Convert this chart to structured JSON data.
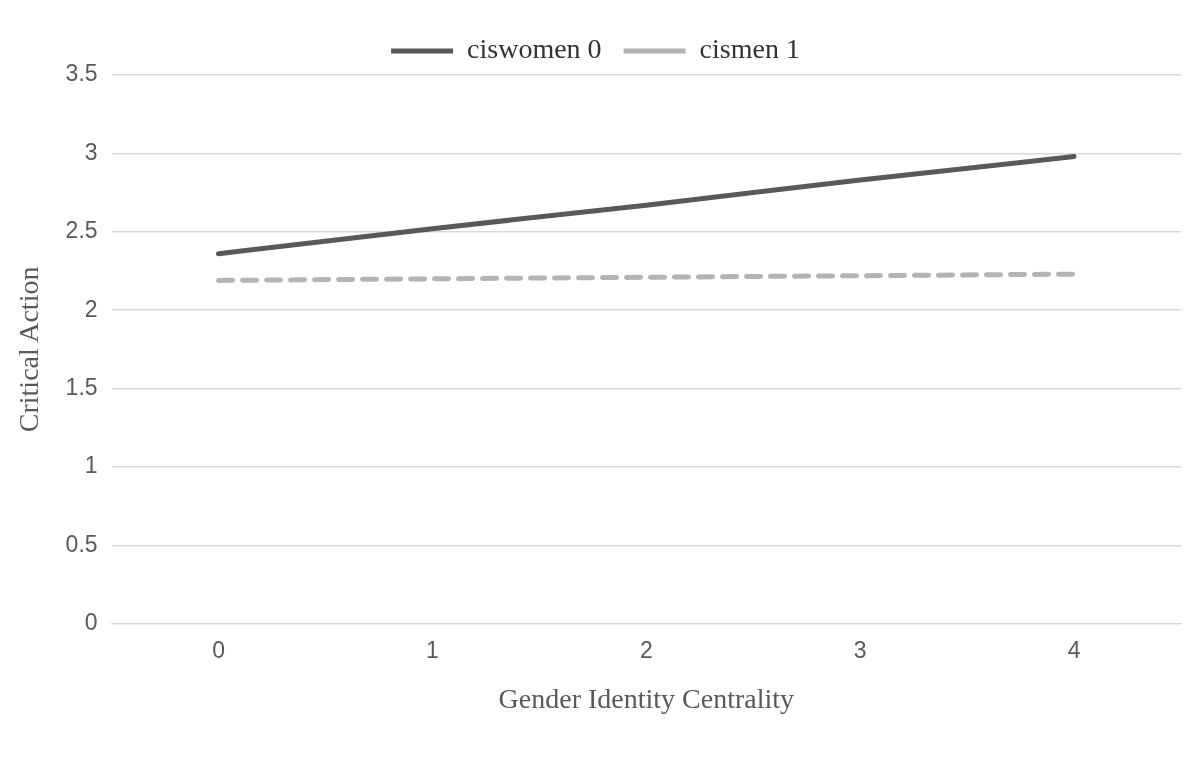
{
  "chart_data": {
    "type": "line",
    "xlabel": "Gender Identity Centrality",
    "ylabel": "Critical Action",
    "categories": [
      "0",
      "1",
      "2",
      "3",
      "4"
    ],
    "series": [
      {
        "name": "ciswomen 0",
        "color": "#595959",
        "values": [
          2.36,
          2.52,
          2.67,
          2.83,
          2.98
        ],
        "line_style": "solid"
      },
      {
        "name": "cismen 1",
        "color": "#b4b4b4",
        "values": [
          2.19,
          2.2,
          2.21,
          2.22,
          2.23
        ],
        "line_style": "dashed"
      }
    ],
    "ylim": [
      0,
      3.5
    ],
    "yticks": [
      0,
      0.5,
      1,
      1.5,
      2,
      2.5,
      3,
      3.5
    ],
    "grid": "y",
    "legend": "top",
    "marker": "none"
  }
}
